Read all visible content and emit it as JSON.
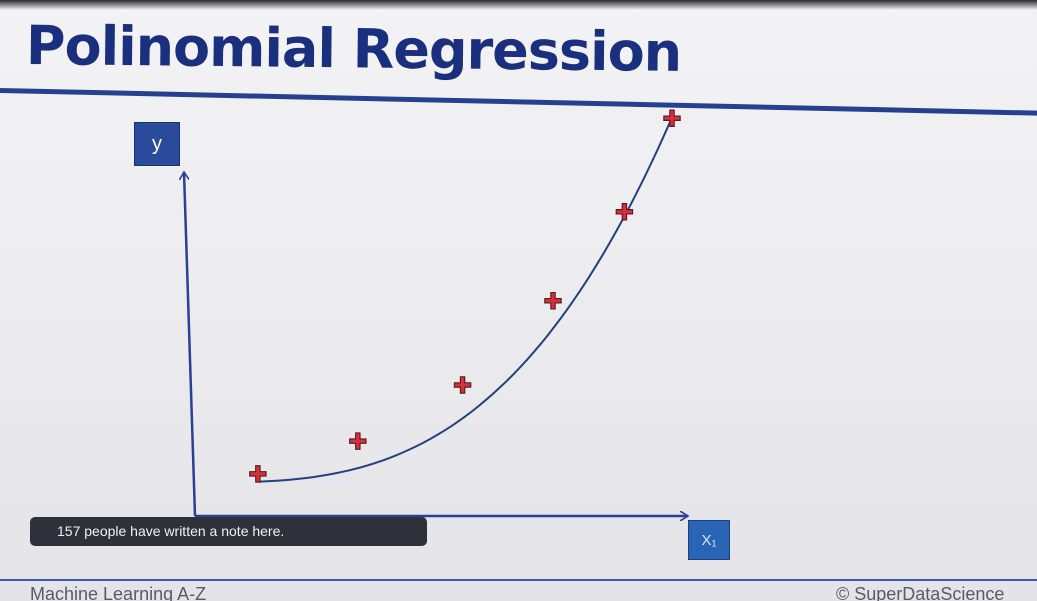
{
  "slide": {
    "title": "Polinomial Regression",
    "footer_left": "Machine Learning A-Z",
    "footer_right": "© SuperDataScience"
  },
  "note_bar": {
    "text": "157 people have written a note here."
  },
  "colors": {
    "title": "#1a2f7e",
    "axis": "#2a3f96",
    "curve": "#24407f",
    "marker": "#d8303a",
    "note_bar": "#2e313a"
  },
  "chart_data": {
    "type": "scatter",
    "title": "",
    "xlabel": "X₁",
    "ylabel": "y",
    "xlim": [
      0,
      10
    ],
    "ylim": [
      0,
      10
    ],
    "grid": false,
    "points": [
      {
        "x": 1.3,
        "y": 0.9
      },
      {
        "x": 3.4,
        "y": 1.6
      },
      {
        "x": 5.6,
        "y": 2.8
      },
      {
        "x": 7.5,
        "y": 4.6
      },
      {
        "x": 9.0,
        "y": 6.5
      },
      {
        "x": 10.0,
        "y": 8.5
      }
    ],
    "trend_curve": {
      "type": "polynomial",
      "coefficients": [
        0.716,
        0.0,
        0.0,
        0.0078
      ]
    }
  }
}
